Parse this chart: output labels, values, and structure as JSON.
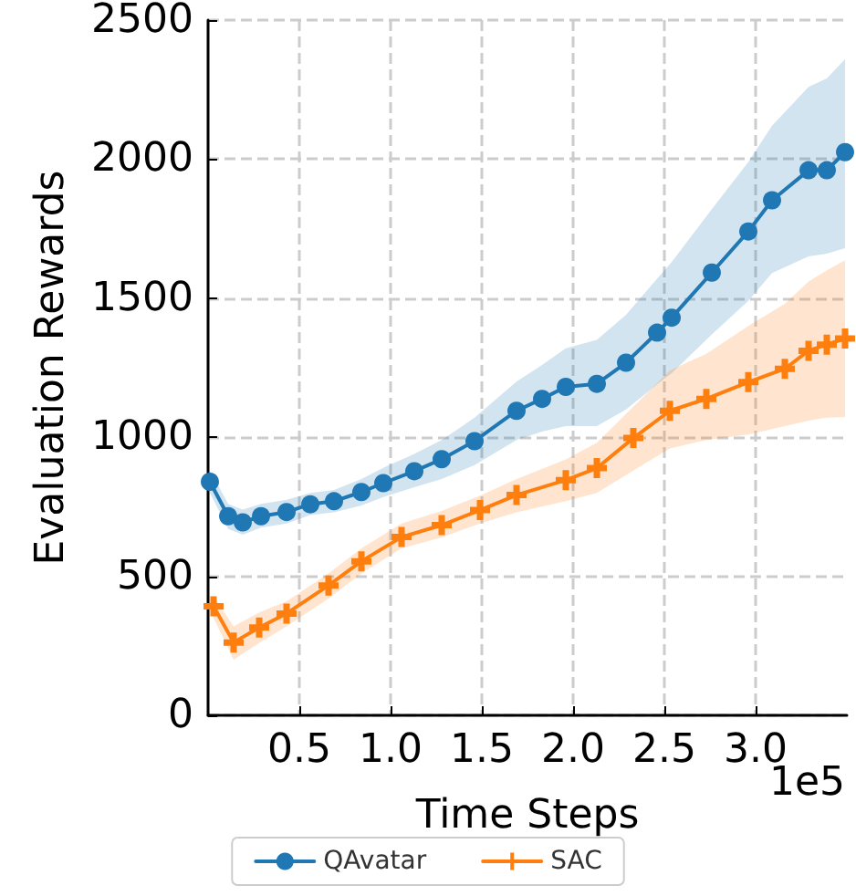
{
  "chart_data": {
    "type": "line",
    "xlabel": "Time Steps",
    "ylabel": "Evaluation Rewards",
    "annotations": [
      "1e5"
    ],
    "xlim": [
      0,
      3.5
    ],
    "xticks": [
      0.5,
      {
        "value": 1,
        "label": "1.0"
      },
      1.5,
      {
        "value": 2,
        "label": "2.0"
      },
      2.5,
      {
        "value": 3,
        "label": "3.0"
      }
    ],
    "ylim": [
      0,
      2500
    ],
    "yticks": [
      0,
      500,
      1000,
      1500,
      2000,
      2500
    ],
    "grid": true,
    "legend": "bottom",
    "line_style": "solid",
    "series": [
      {
        "name": "QAvatar",
        "color": "#1f77b4",
        "marker": "circle",
        "x": [
          0.01,
          0.11,
          0.19,
          0.29,
          0.43,
          0.56,
          0.69,
          0.84,
          0.96,
          1.13,
          1.28,
          1.46,
          1.69,
          1.83,
          1.96,
          2.13,
          2.29,
          2.46,
          2.54,
          2.76,
          2.96,
          3.09,
          3.29,
          3.39,
          3.49
        ],
        "values": [
          840,
          716,
          694,
          716,
          731,
          759,
          770,
          803,
          835,
          878,
          921,
          986,
          1095,
          1138,
          1181,
          1192,
          1268,
          1376,
          1430,
          1592,
          1740,
          1852,
          1960,
          1960,
          2025
        ],
        "lower": [
          800,
          670,
          650,
          675,
          690,
          720,
          730,
          755,
          785,
          820,
          850,
          900,
          990,
          1020,
          1040,
          1040,
          1100,
          1190,
          1230,
          1370,
          1490,
          1590,
          1650,
          1660,
          1680
        ],
        "upper": [
          880,
          760,
          740,
          760,
          775,
          800,
          810,
          850,
          890,
          940,
          990,
          1070,
          1200,
          1260,
          1320,
          1350,
          1440,
          1570,
          1630,
          1820,
          1990,
          2120,
          2260,
          2290,
          2360
        ]
      },
      {
        "name": "SAC",
        "color": "#ff7f0e",
        "marker": "cross",
        "x": [
          0.03,
          0.14,
          0.28,
          0.43,
          0.66,
          0.84,
          1.06,
          1.28,
          1.49,
          1.69,
          1.96,
          2.13,
          2.33,
          2.53,
          2.73,
          2.96,
          3.16,
          3.29,
          3.39,
          3.49
        ],
        "values": [
          392,
          262,
          316,
          366,
          467,
          554,
          641,
          684,
          738,
          792,
          846,
          889,
          997,
          1095,
          1138,
          1198,
          1246,
          1311,
          1333,
          1355
        ],
        "lower": [
          350,
          200,
          260,
          320,
          420,
          510,
          600,
          640,
          690,
          730,
          770,
          800,
          880,
          960,
          990,
          1010,
          1040,
          1060,
          1070,
          1073
        ],
        "upper": [
          430,
          320,
          370,
          410,
          510,
          600,
          690,
          735,
          790,
          850,
          920,
          980,
          1110,
          1240,
          1300,
          1400,
          1480,
          1560,
          1600,
          1636
        ]
      }
    ]
  }
}
